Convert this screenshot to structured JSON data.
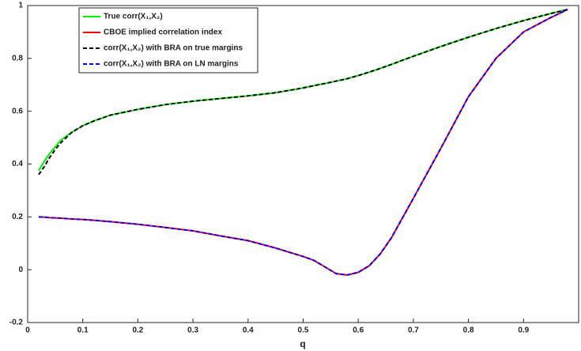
{
  "chart_data": {
    "type": "line",
    "xlabel": "q",
    "x": [
      0.02,
      0.03,
      0.04,
      0.05,
      0.06,
      0.08,
      0.1,
      0.12,
      0.15,
      0.2,
      0.25,
      0.3,
      0.35,
      0.4,
      0.45,
      0.5,
      0.52,
      0.54,
      0.56,
      0.58,
      0.6,
      0.62,
      0.64,
      0.66,
      0.7,
      0.75,
      0.8,
      0.85,
      0.9,
      0.95,
      0.98
    ],
    "series": [
      {
        "name": "True corr(X₁,X₂)",
        "color": "#00ee00",
        "dash": "solid",
        "values": [
          0.375,
          0.41,
          0.44,
          0.465,
          0.49,
          0.52,
          0.545,
          0.563,
          0.585,
          0.607,
          0.625,
          0.638,
          0.648,
          0.658,
          0.67,
          0.688,
          0.697,
          0.705,
          0.714,
          0.723,
          0.735,
          0.748,
          0.762,
          0.777,
          0.808,
          0.845,
          0.88,
          0.913,
          0.943,
          0.97,
          0.985
        ]
      },
      {
        "name": "CBOE implied correlation index",
        "color": "#ff0000",
        "dash": "solid",
        "values": [
          0.2,
          0.199,
          0.197,
          0.196,
          0.195,
          0.192,
          0.19,
          0.187,
          0.182,
          0.172,
          0.16,
          0.147,
          0.128,
          0.11,
          0.082,
          0.05,
          0.035,
          0.01,
          -0.015,
          -0.02,
          -0.01,
          0.015,
          0.06,
          0.12,
          0.27,
          0.46,
          0.655,
          0.8,
          0.9,
          0.955,
          0.985
        ]
      },
      {
        "name": "corr(X₁,X₂) with BRA on true margins",
        "color": "#000000",
        "dash": "dashed",
        "values": [
          0.36,
          0.39,
          0.425,
          0.455,
          0.48,
          0.52,
          0.545,
          0.563,
          0.585,
          0.607,
          0.625,
          0.638,
          0.648,
          0.658,
          0.67,
          0.688,
          0.697,
          0.705,
          0.714,
          0.723,
          0.735,
          0.748,
          0.762,
          0.777,
          0.808,
          0.845,
          0.88,
          0.913,
          0.943,
          0.97,
          0.985
        ]
      },
      {
        "name": "corr(X₁,X₂) with BRA on LN margins",
        "color": "#0000ff",
        "dash": "dashed",
        "values": [
          0.2,
          0.199,
          0.197,
          0.196,
          0.195,
          0.192,
          0.19,
          0.187,
          0.182,
          0.172,
          0.16,
          0.147,
          0.128,
          0.11,
          0.082,
          0.05,
          0.035,
          0.01,
          -0.015,
          -0.02,
          -0.01,
          0.015,
          0.06,
          0.12,
          0.27,
          0.46,
          0.655,
          0.8,
          0.9,
          0.955,
          0.985
        ]
      }
    ],
    "xlim": [
      0,
      1
    ],
    "xticks": [
      0,
      0.1,
      0.2,
      0.3,
      0.4,
      0.5,
      0.6,
      0.7,
      0.8,
      0.9
    ],
    "ylim": [
      -0.2,
      1
    ],
    "yticks": [
      -0.2,
      0,
      0.2,
      0.4,
      0.6,
      0.8,
      1
    ],
    "legend": "upper-left",
    "grid": false
  }
}
